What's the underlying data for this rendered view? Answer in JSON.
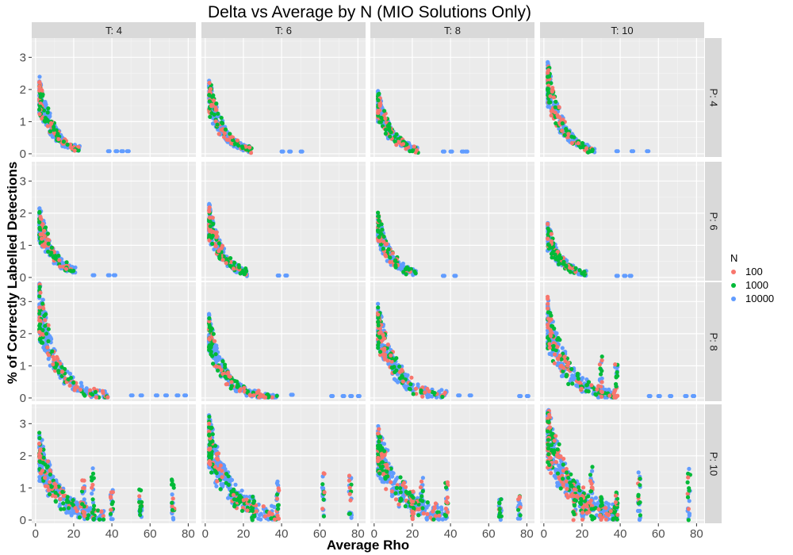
{
  "chart_data": {
    "type": "scatter",
    "title": "Delta vs Average by N (MIO Solutions Only)",
    "xlabel": "Average Rho",
    "ylabel": "% of Correctly Labelled Detections",
    "xlim": [
      -2,
      84
    ],
    "ylim": [
      -0.1,
      3.6
    ],
    "x_ticks": [
      0,
      20,
      40,
      60,
      80
    ],
    "y_ticks": [
      0,
      1,
      2,
      3
    ],
    "facet_columns": [
      "T: 4",
      "T: 6",
      "T: 8",
      "T: 10"
    ],
    "facet_rows": [
      "P: 4",
      "P: 6",
      "P: 8",
      "P: 10"
    ],
    "grid": true,
    "legend": {
      "title": "N",
      "placement": "right",
      "entries": [
        {
          "label": "100",
          "color": "#F8766D"
        },
        {
          "label": "1000",
          "color": "#00BA38"
        },
        {
          "label": "10000",
          "color": "#619CFF"
        }
      ]
    },
    "series": [
      {
        "name": "100",
        "color": "#F8766D"
      },
      {
        "name": "1000",
        "color": "#00BA38"
      },
      {
        "name": "10000",
        "color": "#619CFF"
      }
    ],
    "panels": [
      {
        "col": "T: 4",
        "row": "P: 4",
        "y_peak": 2.3,
        "x_extent": 48,
        "spread": 0.15,
        "density": 260,
        "columns_x": [],
        "outliers": [
          [
            38,
            0.08
          ],
          [
            42,
            0.08
          ],
          [
            45,
            0.08
          ],
          [
            48,
            0.08
          ]
        ]
      },
      {
        "col": "T: 6",
        "row": "P: 4",
        "y_peak": 2.3,
        "x_extent": 50,
        "spread": 0.15,
        "density": 260,
        "columns_x": [],
        "outliers": [
          [
            40,
            0.07
          ],
          [
            44,
            0.07
          ],
          [
            50,
            0.07
          ]
        ]
      },
      {
        "col": "T: 8",
        "row": "P: 4",
        "y_peak": 1.9,
        "x_extent": 48,
        "spread": 0.15,
        "density": 240,
        "columns_x": [],
        "outliers": [
          [
            36,
            0.07
          ],
          [
            40,
            0.07
          ],
          [
            46,
            0.07
          ],
          [
            48,
            0.07
          ]
        ]
      },
      {
        "col": "T: 10",
        "row": "P: 4",
        "y_peak": 2.8,
        "x_extent": 55,
        "spread": 0.15,
        "density": 260,
        "columns_x": [],
        "outliers": [
          [
            38,
            0.08
          ],
          [
            46,
            0.08
          ],
          [
            54,
            0.08
          ]
        ]
      },
      {
        "col": "T: 4",
        "row": "P: 6",
        "y_peak": 2.1,
        "x_extent": 42,
        "spread": 0.2,
        "density": 240,
        "columns_x": [],
        "outliers": [
          [
            30,
            0.07
          ],
          [
            38,
            0.07
          ],
          [
            41,
            0.07
          ]
        ]
      },
      {
        "col": "T: 6",
        "row": "P: 6",
        "y_peak": 2.2,
        "x_extent": 45,
        "spread": 0.15,
        "density": 240,
        "columns_x": [],
        "outliers": [
          [
            38,
            0.06
          ],
          [
            42,
            0.06
          ]
        ]
      },
      {
        "col": "T: 8",
        "row": "P: 6",
        "y_peak": 1.9,
        "x_extent": 45,
        "spread": 0.15,
        "density": 220,
        "columns_x": [],
        "outliers": [
          [
            36,
            0.05
          ],
          [
            42,
            0.05
          ]
        ]
      },
      {
        "col": "T: 10",
        "row": "P: 6",
        "y_peak": 1.6,
        "x_extent": 45,
        "spread": 0.15,
        "density": 220,
        "columns_x": [],
        "outliers": [
          [
            38,
            0.05
          ],
          [
            42,
            0.05
          ],
          [
            45,
            0.05
          ]
        ]
      },
      {
        "col": "T: 4",
        "row": "P: 8",
        "y_peak": 3.5,
        "x_extent": 80,
        "spread": 0.25,
        "density": 300,
        "columns_x": [],
        "outliers": [
          [
            50,
            0.08
          ],
          [
            55,
            0.08
          ],
          [
            63,
            0.08
          ],
          [
            68,
            0.08
          ],
          [
            74,
            0.08
          ],
          [
            78,
            0.08
          ]
        ]
      },
      {
        "col": "T: 6",
        "row": "P: 8",
        "y_peak": 2.5,
        "x_extent": 80,
        "spread": 0.2,
        "density": 280,
        "columns_x": [],
        "outliers": [
          [
            45,
            0.1
          ],
          [
            66,
            0.06
          ],
          [
            72,
            0.06
          ],
          [
            76,
            0.06
          ],
          [
            80,
            0.06
          ]
        ]
      },
      {
        "col": "T: 8",
        "row": "P: 8",
        "y_peak": 2.8,
        "x_extent": 80,
        "spread": 0.3,
        "density": 300,
        "columns_x": [],
        "outliers": [
          [
            36,
            0.08
          ],
          [
            44,
            0.08
          ],
          [
            50,
            0.08
          ],
          [
            76,
            0.06
          ],
          [
            80,
            0.06
          ]
        ]
      },
      {
        "col": "T: 10",
        "row": "P: 8",
        "y_peak": 2.9,
        "x_extent": 80,
        "spread": 0.35,
        "density": 320,
        "columns_x": [
          30,
          38
        ],
        "outliers": [
          [
            55,
            0.06
          ],
          [
            60,
            0.06
          ],
          [
            66,
            0.06
          ],
          [
            74,
            0.06
          ],
          [
            78,
            0.06
          ]
        ]
      },
      {
        "col": "T: 4",
        "row": "P: 10",
        "y_peak": 2.5,
        "x_extent": 75,
        "spread": 0.4,
        "density": 320,
        "columns_x": [
          25,
          30,
          40,
          55,
          72
        ],
        "outliers": []
      },
      {
        "col": "T: 6",
        "row": "P: 10",
        "y_peak": 3.0,
        "x_extent": 80,
        "spread": 0.45,
        "density": 340,
        "columns_x": [
          25,
          38,
          62,
          76
        ],
        "outliers": []
      },
      {
        "col": "T: 8",
        "row": "P: 10",
        "y_peak": 2.8,
        "x_extent": 80,
        "spread": 0.5,
        "density": 360,
        "columns_x": [
          20,
          25,
          38,
          66,
          76
        ],
        "outliers": []
      },
      {
        "col": "T: 10",
        "row": "P: 10",
        "y_peak": 3.3,
        "x_extent": 80,
        "spread": 0.5,
        "density": 380,
        "columns_x": [
          16,
          20,
          25,
          30,
          38,
          50,
          76
        ],
        "outliers": []
      }
    ]
  }
}
